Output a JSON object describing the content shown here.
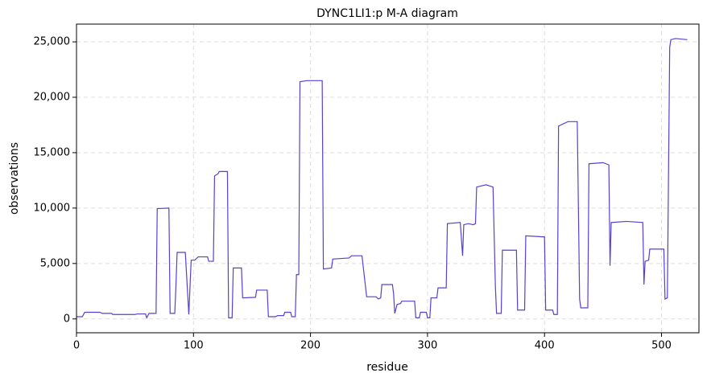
{
  "chart_data": {
    "type": "line",
    "title": "DYNC1LI1:p M-A diagram",
    "x_label": "residue",
    "y_label": "observations",
    "xlim": [
      0,
      532
    ],
    "ylim": [
      -1250,
      26600
    ],
    "xticks": [
      0,
      100,
      200,
      300,
      400,
      500
    ],
    "yticks": [
      0,
      {
        "value": 5000,
        "label": "5,000"
      },
      {
        "value": 10000,
        "label": "10,000"
      },
      {
        "value": 15000,
        "label": "15,000"
      },
      {
        "value": 20000,
        "label": "20,000"
      },
      {
        "value": 25000,
        "label": "25,000"
      }
    ],
    "grid": true,
    "series": [
      {
        "name": "observations",
        "color": "#5a3fd1",
        "x": [
          0,
          5,
          7,
          20,
          22,
          30,
          31,
          50,
          52,
          59,
          60,
          62,
          68,
          69,
          79,
          80,
          84,
          85,
          86,
          93,
          96,
          98,
          101,
          104,
          112,
          113,
          117,
          118,
          121,
          122,
          129,
          130,
          133,
          134,
          141,
          142,
          153,
          154,
          163,
          164,
          170,
          172,
          177,
          178,
          183,
          184,
          187,
          188,
          190,
          191,
          197,
          210,
          211,
          218,
          219,
          233,
          235,
          244,
          248,
          256,
          258,
          260,
          261,
          270,
          271,
          272,
          274,
          277,
          278,
          289,
          290,
          293,
          294,
          299,
          300,
          302,
          303,
          308,
          309,
          316,
          317,
          328,
          330,
          331,
          335,
          339,
          341,
          342,
          350,
          356,
          358,
          359,
          363,
          364,
          376,
          377,
          383,
          384,
          400,
          401,
          407,
          408,
          411,
          412,
          420,
          428,
          430,
          431,
          437,
          438,
          450,
          455,
          456,
          457,
          470,
          484,
          485,
          486,
          489,
          490,
          502,
          503,
          505,
          507,
          508,
          512,
          522
        ],
        "values": [
          200,
          200,
          600,
          600,
          500,
          500,
          400,
          400,
          450,
          450,
          100,
          500,
          500,
          9950,
          10000,
          500,
          500,
          3000,
          6000,
          6000,
          400,
          5300,
          5300,
          5600,
          5600,
          5200,
          5200,
          12900,
          13100,
          13300,
          13300,
          100,
          100,
          4600,
          4600,
          1900,
          1950,
          2600,
          2600,
          200,
          200,
          300,
          300,
          600,
          600,
          200,
          200,
          4000,
          4000,
          21400,
          21500,
          21500,
          4500,
          4600,
          5400,
          5500,
          5700,
          5700,
          2000,
          2000,
          1800,
          1900,
          3100,
          3100,
          2300,
          500,
          1300,
          1400,
          1600,
          1600,
          100,
          100,
          600,
          600,
          100,
          100,
          1900,
          1900,
          2800,
          2800,
          8600,
          8700,
          5700,
          8500,
          8600,
          8500,
          8600,
          11900,
          12100,
          11900,
          3000,
          500,
          500,
          6200,
          6200,
          800,
          800,
          7500,
          7400,
          800,
          800,
          400,
          400,
          17400,
          17800,
          17800,
          1800,
          1000,
          1000,
          14000,
          14100,
          13900,
          4800,
          8700,
          8800,
          8700,
          3100,
          5200,
          5300,
          6300,
          6300,
          1800,
          1900,
          24500,
          25200,
          25300,
          25200
        ]
      }
    ]
  }
}
